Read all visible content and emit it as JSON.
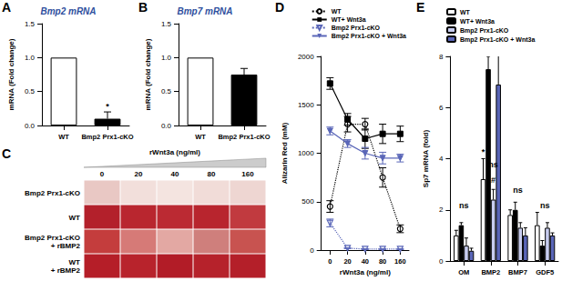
{
  "chart_data": [
    {
      "panel": "A",
      "type": "bar",
      "title": "Bmp2 mRNA",
      "ylabel": "mRNA (Fold change)",
      "categories": [
        "WT",
        "Bmp2 Prx1-cKO"
      ],
      "values": [
        1.0,
        0.1
      ],
      "errors": [
        0,
        0.1
      ],
      "colors": [
        "#ffffff",
        "#000000"
      ],
      "ylim": [
        0,
        1.5
      ],
      "yticks": [
        {
          "value": 0,
          "label": "0.0"
        },
        {
          "value": 0.5,
          "label": "0.5"
        },
        {
          "value": 1,
          "label": "1.0"
        },
        {
          "value": 1.5,
          "label": "1.5"
        }
      ],
      "annotations": [
        {
          "text": "*",
          "category": "Bmp2 Prx1-cKO",
          "y": 0.22
        }
      ],
      "grid": false
    },
    {
      "panel": "B",
      "type": "bar",
      "title": "Bmp7 mRNA",
      "ylabel": "mRNA (Fold change)",
      "categories": [
        "WT",
        "Bmp2 Prx1-cKO"
      ],
      "values": [
        1.0,
        0.75
      ],
      "errors": [
        0,
        0.09
      ],
      "colors": [
        "#ffffff",
        "#000000"
      ],
      "ylim": [
        0,
        1.5
      ],
      "yticks": [
        {
          "value": 0,
          "label": "0.0"
        },
        {
          "value": 0.5,
          "label": "0.5"
        },
        {
          "value": 1,
          "label": "1.0"
        },
        {
          "value": 1.5,
          "label": "1.5"
        }
      ],
      "grid": false
    },
    {
      "panel": "D",
      "type": "line",
      "xlabel": "rWnt3a (ng/ml)",
      "ylabel": "Alizarin Red (mM)",
      "categories": [
        "0",
        "20",
        "40",
        "80",
        "160"
      ],
      "series": [
        {
          "name": "WT",
          "color": "#000000",
          "marker": "open-circle",
          "line_style": "dotted",
          "values": [
            450,
            1300,
            1300,
            750,
            220
          ],
          "errors": [
            60,
            80,
            60,
            100,
            40
          ]
        },
        {
          "name": "WT+ Wnt3a",
          "color": "#000000",
          "marker": "square",
          "line_style": "solid",
          "values": [
            1720,
            1350,
            1150,
            1200,
            1200
          ],
          "errors": [
            60,
            60,
            100,
            100,
            80
          ]
        },
        {
          "name": "Bmp2 Prx1-cKO",
          "color": "#5a66b8",
          "marker": "open-triangle-down",
          "line_style": "dotted",
          "values": [
            280,
            20,
            10,
            10,
            10
          ],
          "errors": [
            40,
            5,
            5,
            5,
            5
          ]
        },
        {
          "name": "Bmp2 Prx1-cKO + Wnt3a",
          "color": "#5a66b8",
          "marker": "triangle-down",
          "line_style": "solid",
          "values": [
            1230,
            1100,
            1000,
            950,
            950
          ],
          "errors": [
            40,
            40,
            60,
            60,
            40
          ]
        }
      ],
      "ylim": [
        0,
        2000
      ],
      "yticks": [
        0,
        500,
        1000,
        1500,
        2000
      ],
      "legend": "top-right",
      "grid": false
    },
    {
      "panel": "E",
      "type": "bar",
      "ylabel": "Sp7 mRNA (fold)",
      "categories": [
        "OM",
        "BMP2",
        "BMP7",
        "GDF5"
      ],
      "series": [
        {
          "name": "WT",
          "color": "#ffffff",
          "values": [
            1.0,
            3.2,
            1.8,
            1.4
          ],
          "errors": [
            0.2,
            0.8,
            0.2,
            0.5
          ]
        },
        {
          "name": "WT+ Wnt3a",
          "color": "#000000",
          "values": [
            1.4,
            7.5,
            2.0,
            0.6
          ],
          "errors": [
            0.1,
            0.5,
            0.3,
            0.2
          ]
        },
        {
          "name": "Bmp2 Prx1-cKO",
          "color": "#c8cdf0",
          "values": [
            0.6,
            2.4,
            1.3,
            1.3
          ],
          "errors": [
            0.3,
            0.4,
            0.2,
            0.2
          ]
        },
        {
          "name": "Bmp2 Prx1-cKO + Wnt3a",
          "color": "#5a66b8",
          "values": [
            0.4,
            6.9,
            1.0,
            1.0
          ],
          "errors": [
            0.1,
            1.3,
            0.3,
            0.1
          ]
        }
      ],
      "ylim": [
        0,
        8
      ],
      "yticks": [
        0,
        2,
        4,
        6,
        8
      ],
      "legend": "top-left",
      "grid": false,
      "annotations": [
        {
          "text": "ns",
          "category": "OM",
          "y": 2.0
        },
        {
          "text": "*",
          "category": "BMP2",
          "series": "WT",
          "y": 4.1
        },
        {
          "text": "#",
          "category": "BMP2",
          "series": "Bmp2 Prx1-cKO",
          "y": 3.0
        },
        {
          "text": "ns",
          "category": "BMP2",
          "series": "Bmp2 Prx1-cKO",
          "y": 3.6
        },
        {
          "text": "ns",
          "category": "BMP7",
          "y": 2.6
        },
        {
          "text": "ns",
          "category": "GDF5",
          "y": 2.0
        }
      ]
    }
  ],
  "panel_c": {
    "panel": "C",
    "title": "rWnt3a (ng/ml)",
    "columns": [
      0,
      20,
      40,
      80,
      160
    ],
    "rows": [
      "Bmp2 Prx1-cKO",
      "WT",
      "Bmp2 Prx1-cKO\n+ rBMP2",
      "WT\n+ rBMP2"
    ]
  }
}
